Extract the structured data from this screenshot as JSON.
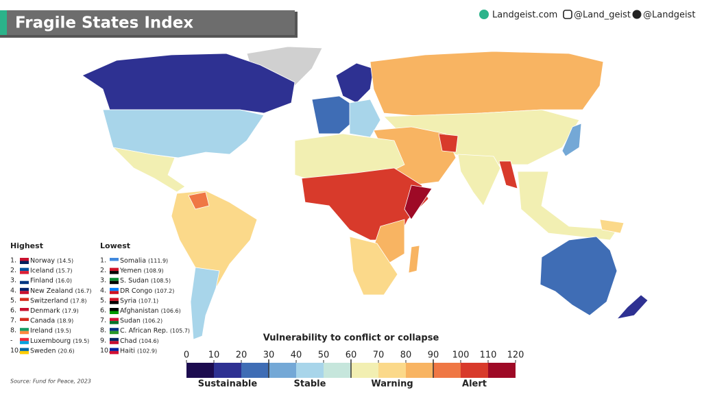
{
  "header": {
    "title": "Fragile States Index"
  },
  "social": {
    "website": "Landgeist.com",
    "instagram": "@Land_geist",
    "twitter": "@Landgeist"
  },
  "highest": {
    "heading": "Highest",
    "rows": [
      {
        "rank": "1.",
        "country": "Norway",
        "score": "(14.5)"
      },
      {
        "rank": "2.",
        "country": "Iceland",
        "score": "(15.7)"
      },
      {
        "rank": "3.",
        "country": "Finland",
        "score": "(16.0)"
      },
      {
        "rank": "4.",
        "country": "New Zealand",
        "score": "(16.7)"
      },
      {
        "rank": "5.",
        "country": "Switzerland",
        "score": "(17.8)"
      },
      {
        "rank": "6.",
        "country": "Denmark",
        "score": "(17.9)"
      },
      {
        "rank": "7.",
        "country": "Canada",
        "score": "(18.9)"
      },
      {
        "rank": "8.",
        "country": "Ireland",
        "score": "(19.5)"
      },
      {
        "rank": "-",
        "country": "Luxembourg",
        "score": "(19.5)"
      },
      {
        "rank": "10.",
        "country": "Sweden",
        "score": "(20.6)"
      }
    ]
  },
  "lowest": {
    "heading": "Lowest",
    "rows": [
      {
        "rank": "1.",
        "country": "Somalia",
        "score": "(111.9)"
      },
      {
        "rank": "2.",
        "country": "Yemen",
        "score": "(108.9)"
      },
      {
        "rank": "3.",
        "country": "S. Sudan",
        "score": "(108.5)"
      },
      {
        "rank": "4.",
        "country": "DR Congo",
        "score": "(107.2)"
      },
      {
        "rank": "5.",
        "country": "Syria",
        "score": "(107.1)"
      },
      {
        "rank": "6.",
        "country": "Afghanistan",
        "score": "(106.6)"
      },
      {
        "rank": "7.",
        "country": "Sudan",
        "score": "(106.2)"
      },
      {
        "rank": "8.",
        "country": "C. African Rep.",
        "score": "(105.7)"
      },
      {
        "rank": "9.",
        "country": "Chad",
        "score": "(104.6)"
      },
      {
        "rank": "10.",
        "country": "Haiti",
        "score": "(102.9)"
      }
    ]
  },
  "legend": {
    "title": "Vulnerability to conflict or collapse",
    "ticks": [
      0,
      10,
      20,
      30,
      40,
      50,
      60,
      70,
      80,
      90,
      100,
      110,
      120
    ],
    "colors": [
      "#1c0c4f",
      "#2e3192",
      "#3f6db5",
      "#74a8d6",
      "#a8d5ea",
      "#c6e6dc",
      "#f2efb2",
      "#fbd98a",
      "#f8b462",
      "#ef7744",
      "#d83a2b",
      "#9e0a26"
    ],
    "zones": [
      "Sustainable",
      "Stable",
      "Warning",
      "Alert"
    ]
  },
  "source": "Source: Fund for Peace, 2023"
}
